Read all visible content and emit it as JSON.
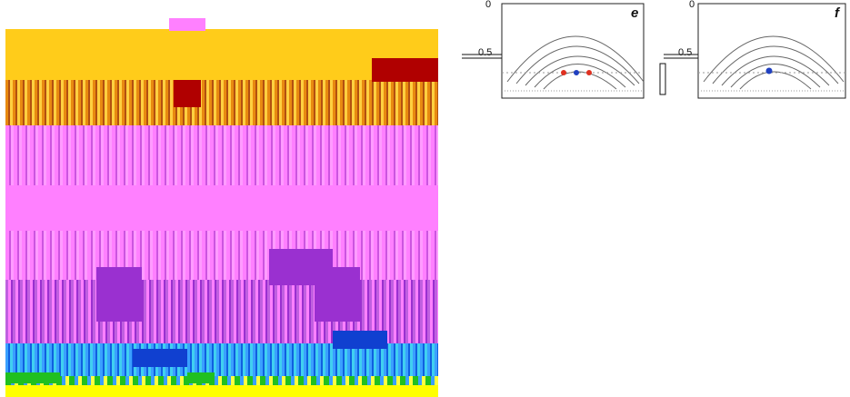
{
  "panels": [
    {
      "letter": "e",
      "y_top": "0",
      "y_mid": "0.5"
    },
    {
      "letter": "f",
      "y_top": "0",
      "y_mid": "0.5"
    }
  ],
  "colors": {
    "gold": "#ffcc1a",
    "pink": "#ff80ff",
    "blue": "#3aa0ff",
    "yellow": "#ffff00",
    "marker_red": "#e03020",
    "marker_blue": "#2040c0"
  }
}
